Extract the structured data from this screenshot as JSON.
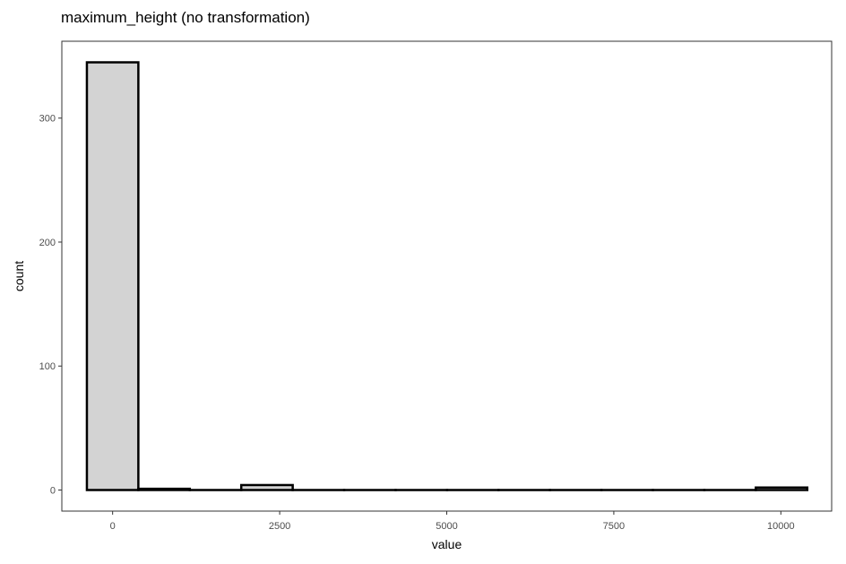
{
  "chart_data": {
    "type": "bar",
    "title": "maximum_height (no transformation)",
    "xlabel": "value",
    "ylabel": "count",
    "xlim": [
      -760,
      10760
    ],
    "ylim": [
      -17,
      362
    ],
    "x_ticks": [
      0,
      2500,
      5000,
      7500,
      10000
    ],
    "x_tick_labels": [
      "0",
      "2500",
      "5000",
      "7500",
      "10000"
    ],
    "y_ticks": [
      0,
      100,
      200,
      300
    ],
    "y_tick_labels": [
      "0",
      "100",
      "200",
      "300"
    ],
    "bin_width": 770,
    "bins": [
      {
        "x": 0,
        "count": 345
      },
      {
        "x": 770,
        "count": 1
      },
      {
        "x": 1540,
        "count": 0
      },
      {
        "x": 2310,
        "count": 4
      },
      {
        "x": 3080,
        "count": 0
      },
      {
        "x": 3850,
        "count": 0
      },
      {
        "x": 4620,
        "count": 0
      },
      {
        "x": 5390,
        "count": 0
      },
      {
        "x": 6160,
        "count": 0
      },
      {
        "x": 6930,
        "count": 0
      },
      {
        "x": 7700,
        "count": 0
      },
      {
        "x": 8470,
        "count": 0
      },
      {
        "x": 9240,
        "count": 0
      },
      {
        "x": 10010,
        "count": 2
      }
    ],
    "grid": false,
    "colors": {
      "bar_fill": "#d3d3d3",
      "bar_stroke": "#000000",
      "panel_border": "#333333",
      "tick_text": "#4d4d4d"
    }
  }
}
